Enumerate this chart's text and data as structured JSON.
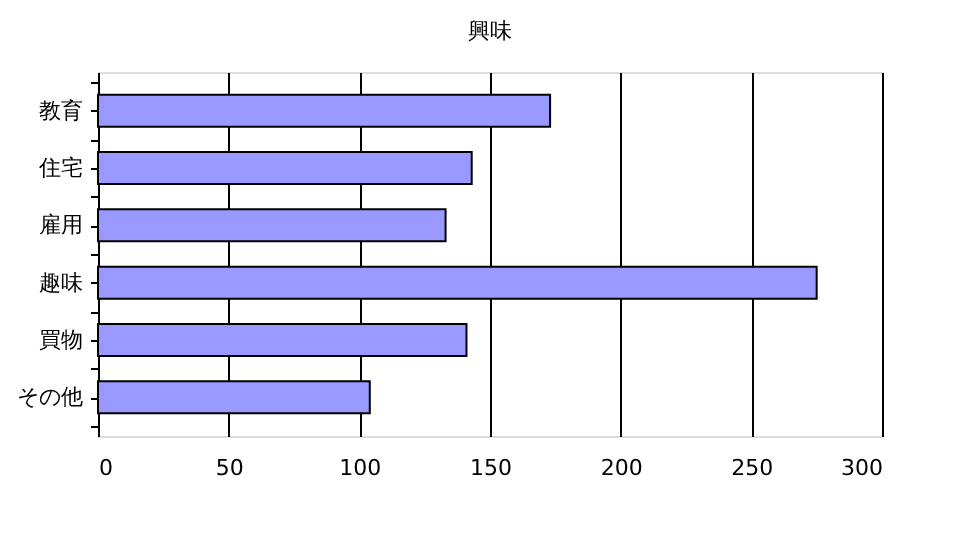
{
  "chart_data": {
    "type": "bar",
    "orientation": "horizontal",
    "title": "興味",
    "categories": [
      "教育",
      "住宅",
      "雇用",
      "趣味",
      "買物",
      "その他"
    ],
    "values": [
      173,
      143,
      133,
      275,
      141,
      104
    ],
    "color": "#9999ff",
    "xlim": [
      0,
      300
    ],
    "xticks": [
      0,
      50,
      100,
      150,
      200,
      250,
      300
    ],
    "grid": "x"
  }
}
